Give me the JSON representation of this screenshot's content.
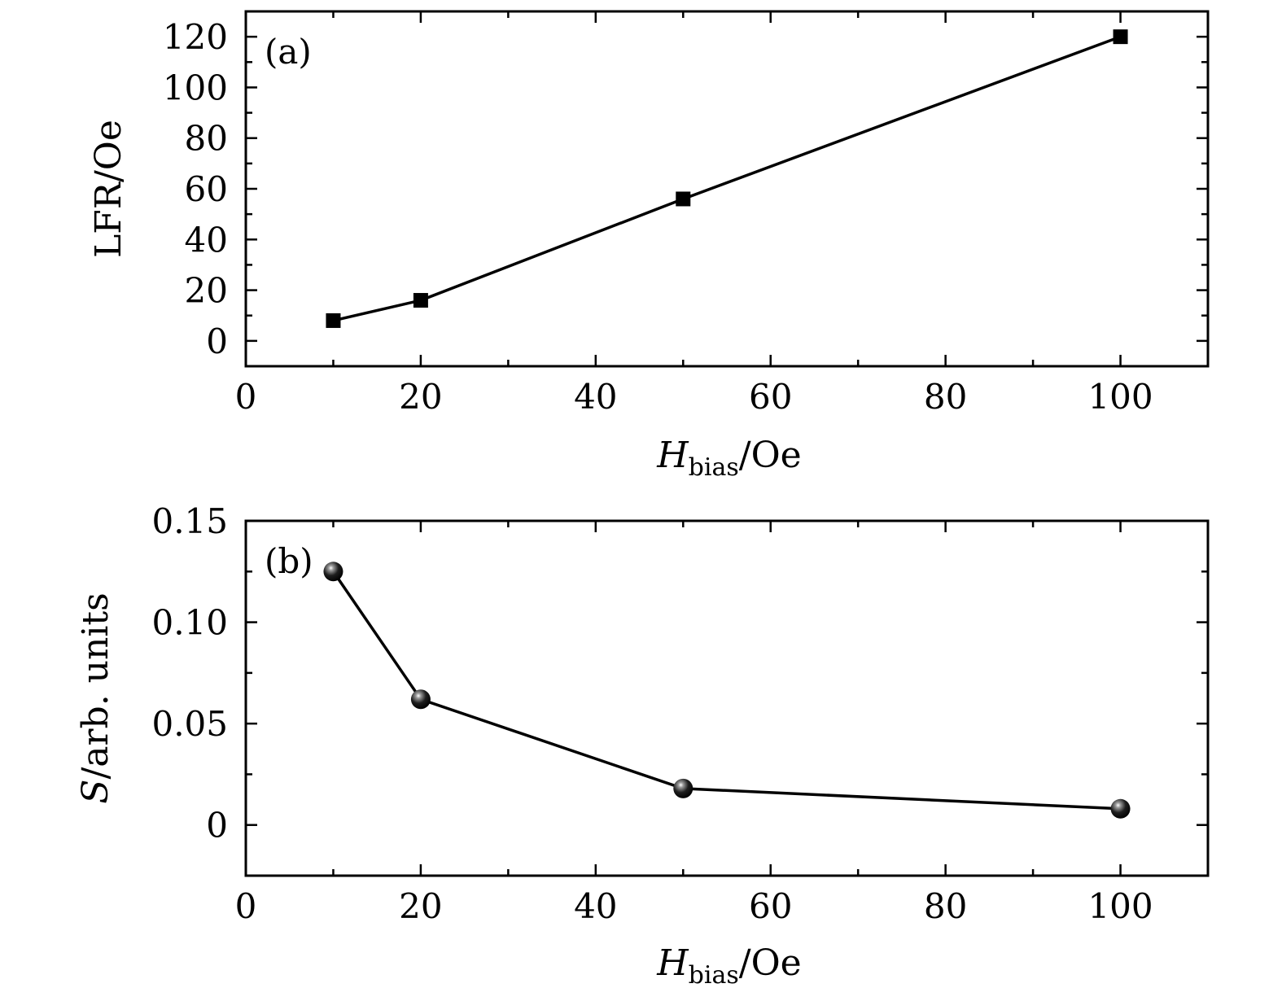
{
  "chart_data": [
    {
      "type": "line",
      "panel_label": "(a)",
      "marker": "square",
      "x": [
        10,
        20,
        50,
        100
      ],
      "y": [
        8,
        16,
        56,
        120
      ],
      "xlim": [
        0,
        110
      ],
      "ylim": [
        -10,
        130
      ],
      "xticks": [
        0,
        20,
        40,
        60,
        80,
        100
      ],
      "xtick_labels": [
        "0",
        "20",
        "40",
        "60",
        "80",
        "100"
      ],
      "yticks": [
        0,
        20,
        40,
        60,
        80,
        100,
        120
      ],
      "ytick_labels": [
        "0",
        "20",
        "40",
        "60",
        "80",
        "100",
        "120"
      ],
      "xlabel": {
        "main": "H",
        "sub": "bias",
        "unit": "/Oe"
      },
      "ylabel": {
        "main": "LFR",
        "unit": "/Oe"
      },
      "grid": false,
      "legend": "none"
    },
    {
      "type": "line",
      "panel_label": "(b)",
      "marker": "sphere",
      "x": [
        10,
        20,
        50,
        100
      ],
      "y": [
        0.125,
        0.062,
        0.018,
        0.008
      ],
      "xlim": [
        0,
        110
      ],
      "ylim": [
        -0.025,
        0.15
      ],
      "xticks": [
        0,
        20,
        40,
        60,
        80,
        100
      ],
      "xtick_labels": [
        "0",
        "20",
        "40",
        "60",
        "80",
        "100"
      ],
      "yticks": [
        0,
        0.05,
        0.1,
        0.15
      ],
      "ytick_labels": [
        "0",
        "0.05",
        "0.10",
        "0.15"
      ],
      "xlabel": {
        "main": "H",
        "sub": "bias",
        "unit": "/Oe"
      },
      "ylabel": {
        "main": "S",
        "unit": "/arb. units"
      },
      "grid": false,
      "legend": "none"
    }
  ]
}
